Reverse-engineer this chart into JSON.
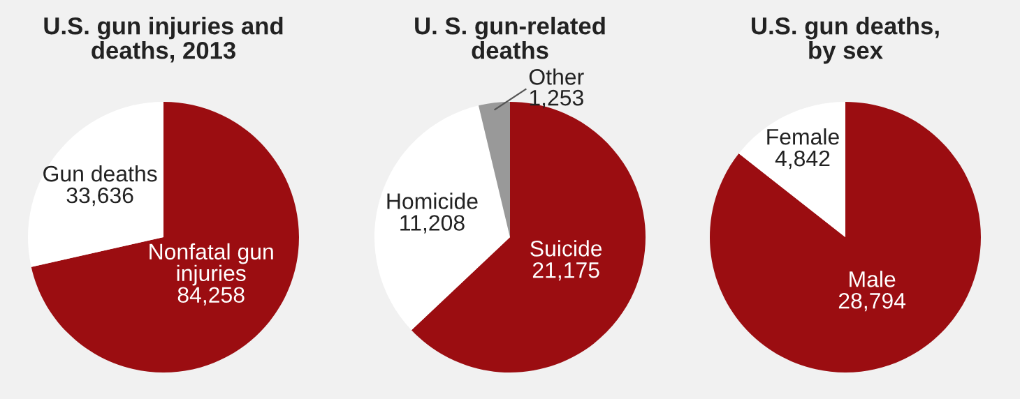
{
  "chart_data": [
    {
      "type": "pie",
      "title": "U.S. gun injuries and\ndeaths, 2013",
      "categories": [
        "Nonfatal gun\ninjuries",
        "Gun deaths"
      ],
      "values": [
        84258,
        33636
      ],
      "value_labels": [
        "84,258",
        "33,636"
      ],
      "colors": [
        "#9b0d11",
        "#ffffff"
      ]
    },
    {
      "type": "pie",
      "title": "U. S. gun-related\ndeaths",
      "categories": [
        "Suicide",
        "Homicide",
        "Other"
      ],
      "values": [
        21175,
        11208,
        1253
      ],
      "value_labels": [
        "21,175",
        "11,208",
        "1,253"
      ],
      "colors": [
        "#9b0d11",
        "#ffffff",
        "#999999"
      ]
    },
    {
      "type": "pie",
      "title": "U.S. gun deaths,\nby sex",
      "categories": [
        "Male",
        "Female"
      ],
      "values": [
        28794,
        4842
      ],
      "value_labels": [
        "28,794",
        "4,842"
      ],
      "colors": [
        "#9b0d11",
        "#ffffff"
      ]
    }
  ]
}
